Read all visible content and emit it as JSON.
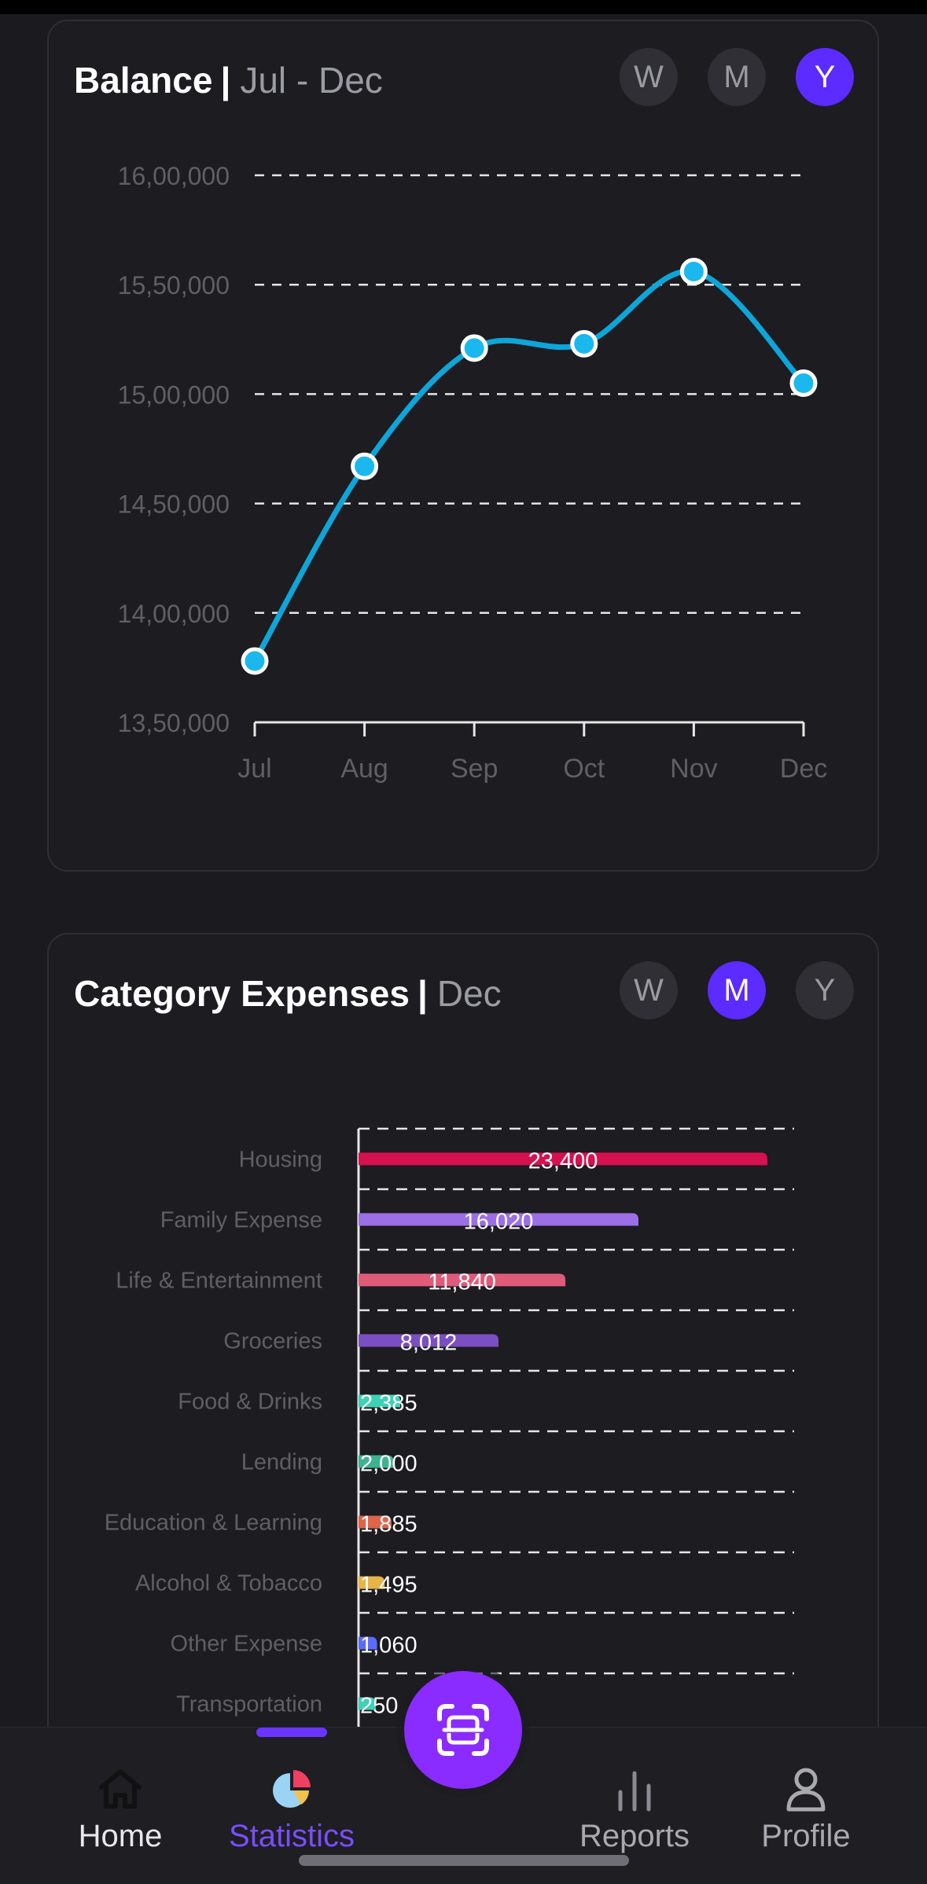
{
  "balance_card": {
    "title": "Balance",
    "separator": "|",
    "period": "Jul - Dec",
    "toggles": [
      {
        "label": "W",
        "active": false
      },
      {
        "label": "M",
        "active": false
      },
      {
        "label": "Y",
        "active": true
      }
    ]
  },
  "expenses_card": {
    "title": "Category Expenses",
    "separator": "|",
    "period": "Dec",
    "toggles": [
      {
        "label": "W",
        "active": false
      },
      {
        "label": "M",
        "active": true
      },
      {
        "label": "Y",
        "active": false
      }
    ]
  },
  "chart_data": [
    {
      "type": "line",
      "x": [
        "Jul",
        "Aug",
        "Sep",
        "Oct",
        "Nov",
        "Dec"
      ],
      "series": [
        {
          "values": [
            1378000,
            1467000,
            1521000,
            1523000,
            1556000,
            1505000
          ],
          "color": "#0ea5d9"
        }
      ],
      "yticks": [
        "16,00,000",
        "15,50,000",
        "15,00,000",
        "14,50,000",
        "14,00,000",
        "13,50,000"
      ],
      "ylim": [
        1350000,
        1600000
      ],
      "grid": true
    },
    {
      "type": "bar",
      "orientation": "horizontal",
      "categories": [
        "Housing",
        "Family Expense",
        "Life & Entertainment",
        "Groceries",
        "Food & Drinks",
        "Lending",
        "Education & Learning",
        "Alcohol & Tobacco",
        "Other Expense",
        "Transportation"
      ],
      "values": [
        23400,
        16020,
        11840,
        8012,
        2385,
        2000,
        1885,
        1495,
        1060,
        250
      ],
      "labels": [
        "23,400",
        "16,020",
        "11,840",
        "8,012",
        "2,385",
        "2,000",
        "1,885",
        "1,495",
        "1,060",
        "250"
      ],
      "colors": [
        "#d6114f",
        "#9d6fe6",
        "#e05a7a",
        "#7b4fc2",
        "#3fd1b5",
        "#3fb38f",
        "#e0644a",
        "#e8b44a",
        "#5a6bff",
        "#3fd1b5"
      ],
      "grid": true
    }
  ],
  "nav": {
    "items": [
      {
        "label": "Home",
        "icon": "home-icon",
        "active": false
      },
      {
        "label": "Statistics",
        "icon": "statistics-icon",
        "active": true
      },
      {
        "label": "Reports",
        "icon": "reports-icon",
        "active": false
      },
      {
        "label": "Profile",
        "icon": "profile-icon",
        "active": false
      }
    ],
    "fab_icon": "scan-icon",
    "accent": "#7b4dff"
  }
}
